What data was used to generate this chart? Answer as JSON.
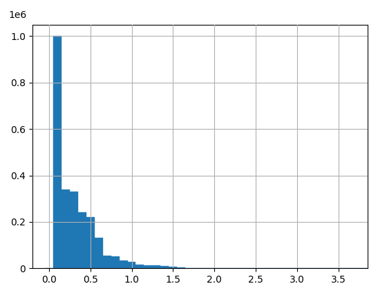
{
  "bin_edges": [
    -0.05,
    0.05,
    0.15,
    0.25,
    0.35,
    0.45,
    0.55,
    0.65,
    0.75,
    0.85,
    0.95,
    1.05,
    1.15,
    1.25,
    1.35,
    1.45,
    1.55,
    1.65,
    1.75,
    1.85,
    1.95,
    2.05,
    2.15,
    2.25,
    2.35,
    2.45,
    2.55,
    2.65,
    2.75,
    2.85,
    2.95,
    3.05,
    3.15,
    3.25,
    3.35,
    3.45,
    3.55,
    3.65,
    3.75,
    3.85
  ],
  "bin_counts": [
    0,
    1000000,
    340000,
    330000,
    240000,
    220000,
    130000,
    55000,
    50000,
    33000,
    28000,
    16000,
    14000,
    12000,
    9000,
    8000,
    3000,
    2000,
    1500,
    1200,
    800,
    900,
    700,
    500,
    400,
    300,
    200,
    900,
    700,
    400,
    200,
    100,
    80,
    60,
    50,
    40,
    30,
    20,
    10
  ],
  "bar_color": "#1f77b4",
  "bar_edgecolor": "#1f77b4",
  "xlim": [
    -0.2,
    3.85
  ],
  "ylim": [
    0,
    1050000
  ],
  "xticks": [
    0.0,
    0.5,
    1.0,
    1.5,
    2.0,
    2.5,
    3.0,
    3.5
  ],
  "yticks": [
    0,
    200000,
    400000,
    600000,
    800000,
    1000000
  ],
  "yticklabels": [
    "0",
    "0.2",
    "0.4",
    "0.6",
    "0.8",
    "1.0"
  ],
  "ylabel_multiplier": "1e6",
  "grid": true,
  "grid_color": "#b0b0b0",
  "grid_linewidth": 0.8,
  "background_color": "#ffffff",
  "figure_facecolor": "#ffffff"
}
